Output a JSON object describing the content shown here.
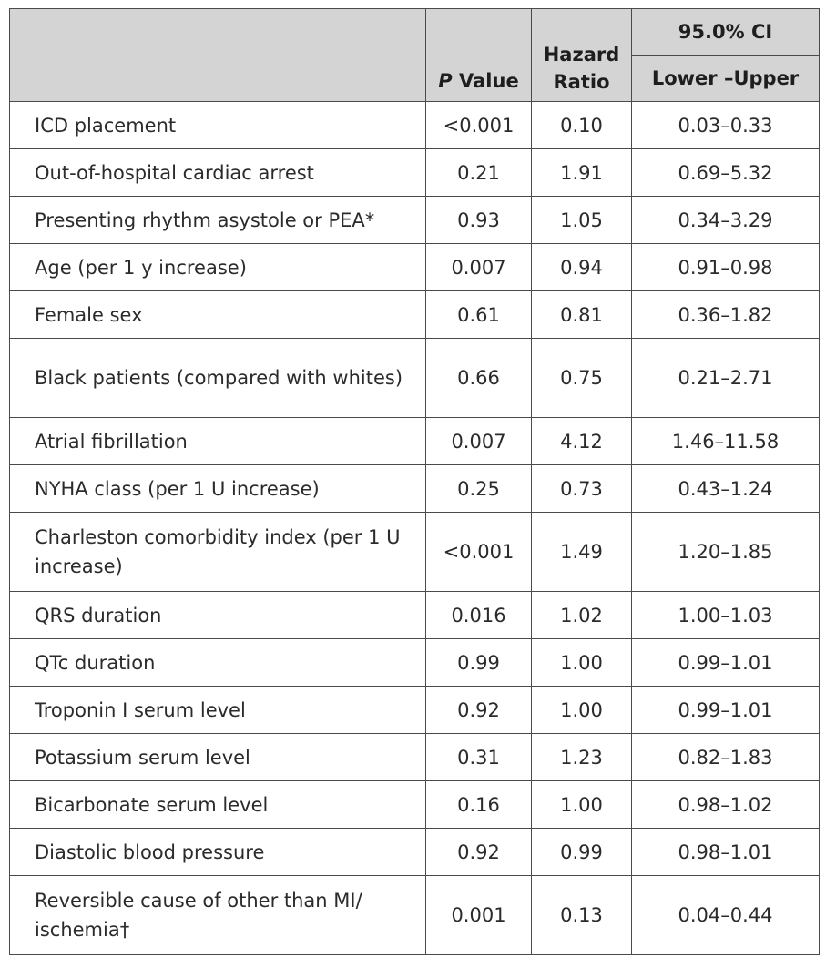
{
  "header": {
    "p_value_italic": "P",
    "p_value_rest": " Value",
    "hazard_line1": "Hazard",
    "hazard_line2": "Ratio",
    "ci_title": "95.0% CI",
    "ci_sub": "Lower –Upper"
  },
  "rows": [
    {
      "label": "ICD placement",
      "p": "<0.001",
      "hr": "0.10",
      "ci": "0.03–0.33"
    },
    {
      "label": "Out-of-hospital cardiac arrest",
      "p": "0.21",
      "hr": "1.91",
      "ci": "0.69–5.32"
    },
    {
      "label": "Presenting rhythm asystole or PEA*",
      "p": "0.93",
      "hr": "1.05",
      "ci": "0.34–3.29"
    },
    {
      "label": "Age (per 1 y increase)",
      "p": "0.007",
      "hr": "0.94",
      "ci": "0.91–0.98"
    },
    {
      "label": "Female sex",
      "p": "0.61",
      "hr": "0.81",
      "ci": "0.36–1.82"
    },
    {
      "label": "Black patients (compared with whites)",
      "p": "0.66",
      "hr": "0.75",
      "ci": "0.21–2.71"
    },
    {
      "label": "Atrial fibrillation",
      "p": "0.007",
      "hr": "4.12",
      "ci": "1.46–11.58"
    },
    {
      "label": "NYHA class (per 1 U increase)",
      "p": "0.25",
      "hr": "0.73",
      "ci": "0.43–1.24"
    },
    {
      "label": "Charleston comorbidity index (per 1 U increase)",
      "p": "<0.001",
      "hr": "1.49",
      "ci": "1.20–1.85"
    },
    {
      "label": "QRS duration",
      "p": "0.016",
      "hr": "1.02",
      "ci": "1.00–1.03"
    },
    {
      "label": "QTc duration",
      "p": "0.99",
      "hr": "1.00",
      "ci": "0.99–1.01"
    },
    {
      "label": "Troponin I serum level",
      "p": "0.92",
      "hr": "1.00",
      "ci": "0.99–1.01"
    },
    {
      "label": "Potassium serum level",
      "p": "0.31",
      "hr": "1.23",
      "ci": "0.82–1.83"
    },
    {
      "label": "Bicarbonate serum level",
      "p": "0.16",
      "hr": "1.00",
      "ci": "0.98–1.02"
    },
    {
      "label": "Diastolic blood pressure",
      "p": "0.92",
      "hr": "0.99",
      "ci": "0.98–1.01"
    },
    {
      "label": "Reversible cause of other than MI/ ischemia†",
      "p": "0.001",
      "hr": "0.13",
      "ci": "0.04–0.44"
    }
  ]
}
